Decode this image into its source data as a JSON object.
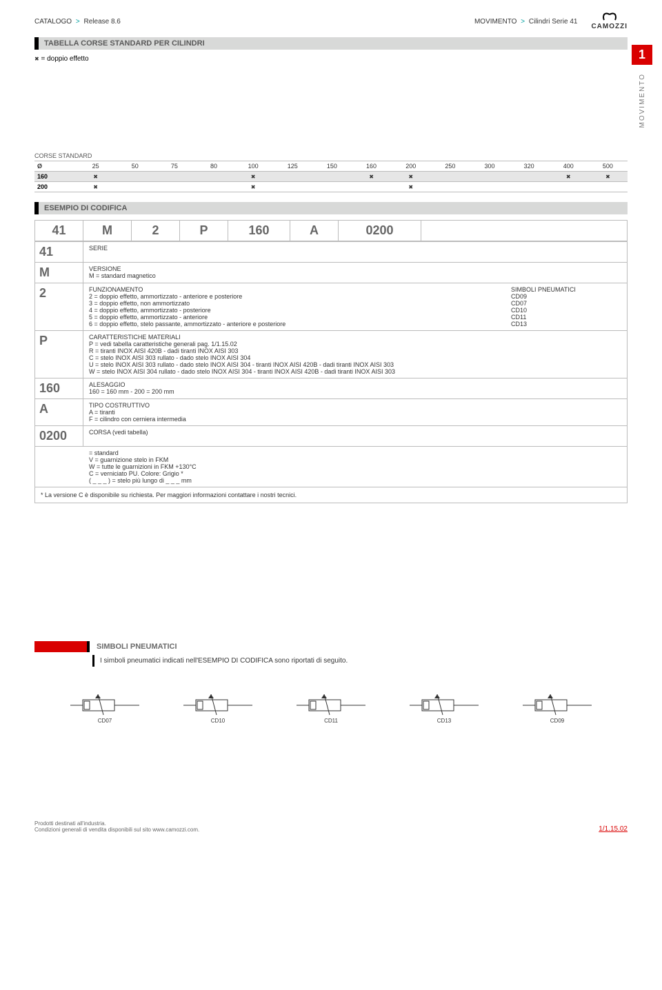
{
  "header": {
    "breadcrumb_left_a": "CATALOGO",
    "breadcrumb_left_b": "Release 8.6",
    "breadcrumb_right_a": "MOVIMENTO",
    "breadcrumb_right_b": "Cilindri Serie 41",
    "logo_text": "CAMOZZI"
  },
  "section_title": "TABELLA CORSE STANDARD PER CILINDRI",
  "doppio_label": "= doppio effetto",
  "side": {
    "num": "1",
    "label": "MOVIMENTO"
  },
  "corse": {
    "title": "CORSE STANDARD",
    "diam_label": "Ø",
    "headers": [
      "25",
      "50",
      "75",
      "80",
      "100",
      "125",
      "150",
      "160",
      "200",
      "250",
      "300",
      "320",
      "400",
      "500"
    ],
    "rows": [
      {
        "label": "160",
        "marks": [
          true,
          false,
          false,
          false,
          true,
          false,
          false,
          true,
          true,
          false,
          false,
          false,
          true,
          true
        ]
      },
      {
        "label": "200",
        "marks": [
          true,
          false,
          false,
          false,
          true,
          false,
          false,
          false,
          true,
          false,
          false,
          false,
          false,
          false
        ]
      }
    ]
  },
  "esempio_title": "ESEMPIO DI CODIFICA",
  "code_cells": [
    "41",
    "M",
    "2",
    "P",
    "160",
    "A",
    "0200",
    ""
  ],
  "legend": [
    {
      "key": "41",
      "title": "SERIE",
      "lines": [],
      "sym_title": "",
      "sym_lines": []
    },
    {
      "key": "M",
      "title": "VERSIONE",
      "lines": [
        "M = standard magnetico"
      ],
      "sym_title": "",
      "sym_lines": []
    },
    {
      "key": "2",
      "title": "FUNZIONAMENTO",
      "lines": [
        "2 = doppio effetto, ammortizzato - anteriore e posteriore",
        "3 = doppio effetto, non ammortizzato",
        "4 = doppio effetto, ammortizzato - posteriore",
        "5 = doppio effetto, ammortizzato - anteriore",
        "6 = doppio effetto, stelo passante, ammortizzato - anteriore e posteriore"
      ],
      "sym_title": "SIMBOLI PNEUMATICI",
      "sym_lines": [
        "CD09",
        "CD07",
        "CD10",
        "CD11",
        "CD13"
      ]
    },
    {
      "key": "P",
      "title": "CARATTERISTICHE MATERIALI",
      "lines": [
        "P = vedi tabella caratteristiche generali pag. 1/1.15.02",
        "R = tiranti INOX AISI 420B - dadi tiranti INOX AISI 303",
        "C = stelo INOX AISI 303 rullato - dado stelo INOX AISI 304",
        "U = stelo INOX AISI 303 rullato - dado stelo INOX AISI 304 - tiranti INOX AISI 420B - dadi tiranti INOX AISI 303",
        "W = stelo INOX AISI 304 rullato - dado stelo INOX AISI 304 - tiranti INOX AISI 420B - dadi tiranti INOX AISI 303"
      ],
      "sym_title": "",
      "sym_lines": []
    },
    {
      "key": "160",
      "title": "ALESAGGIO",
      "lines": [
        "160 = 160 mm   -   200 = 200 mm"
      ],
      "sym_title": "",
      "sym_lines": []
    },
    {
      "key": "A",
      "title": "TIPO COSTRUTTIVO",
      "lines": [
        "A = tiranti",
        "F = cilindro con cerniera intermedia"
      ],
      "sym_title": "",
      "sym_lines": []
    },
    {
      "key": "0200",
      "title": "CORSA (vedi tabella)",
      "lines": [],
      "sym_title": "",
      "sym_lines": []
    }
  ],
  "extra_notes": [
    "= standard",
    "V = guarnizione stelo in FKM",
    "W = tutte le guarnizioni in FKM +130°C",
    "C = verniciato PU. Colore: Grigio *",
    "( _ _ _ ) = stelo più lungo di _ _ _ mm"
  ],
  "footnote": "* La versione C è disponibile su richiesta. Per maggiori informazioni contattare i nostri tecnici.",
  "simboli": {
    "title": "SIMBOLI PNEUMATICI",
    "desc": "I simboli pneumatici indicati nell'ESEMPIO DI CODIFICA sono riportati di seguito.",
    "items": [
      "CD07",
      "CD10",
      "CD11",
      "CD13",
      "CD09"
    ]
  },
  "footer": {
    "line1": "Prodotti destinati all'industria.",
    "line2": "Condizioni generali di vendita disponibili sul sito www.camozzi.com.",
    "page_num": "1/1.15.02"
  },
  "colors": {
    "accent_red": "#d90000",
    "grey_bar": "#d8d9d8",
    "text_grey": "#666666",
    "border": "#bbbbbb",
    "teal": "#00a0a0"
  }
}
